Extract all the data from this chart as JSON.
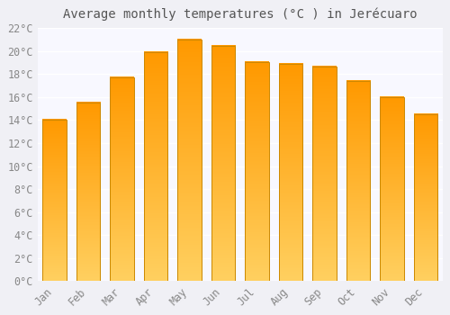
{
  "title": "Average monthly temperatures (°C ) in Jerécuaro",
  "months": [
    "Jan",
    "Feb",
    "Mar",
    "Apr",
    "May",
    "Jun",
    "Jul",
    "Aug",
    "Sep",
    "Oct",
    "Nov",
    "Dec"
  ],
  "values": [
    14.0,
    15.5,
    17.7,
    19.9,
    21.0,
    20.4,
    19.0,
    18.9,
    18.6,
    17.4,
    16.0,
    14.5
  ],
  "bar_color": "#FFB020",
  "bar_edge_color": "#CC8800",
  "ylim": [
    0,
    22
  ],
  "yticks": [
    0,
    2,
    4,
    6,
    8,
    10,
    12,
    14,
    16,
    18,
    20,
    22
  ],
  "ytick_labels": [
    "0°C",
    "2°C",
    "4°C",
    "6°C",
    "8°C",
    "10°C",
    "12°C",
    "14°C",
    "16°C",
    "18°C",
    "20°C",
    "22°C"
  ],
  "bg_color": "#f0f0f5",
  "plot_bg_color": "#f8f8ff",
  "grid_color": "#ffffff",
  "title_fontsize": 10,
  "tick_fontsize": 8.5,
  "bar_width": 0.7,
  "tick_color": "#888888"
}
